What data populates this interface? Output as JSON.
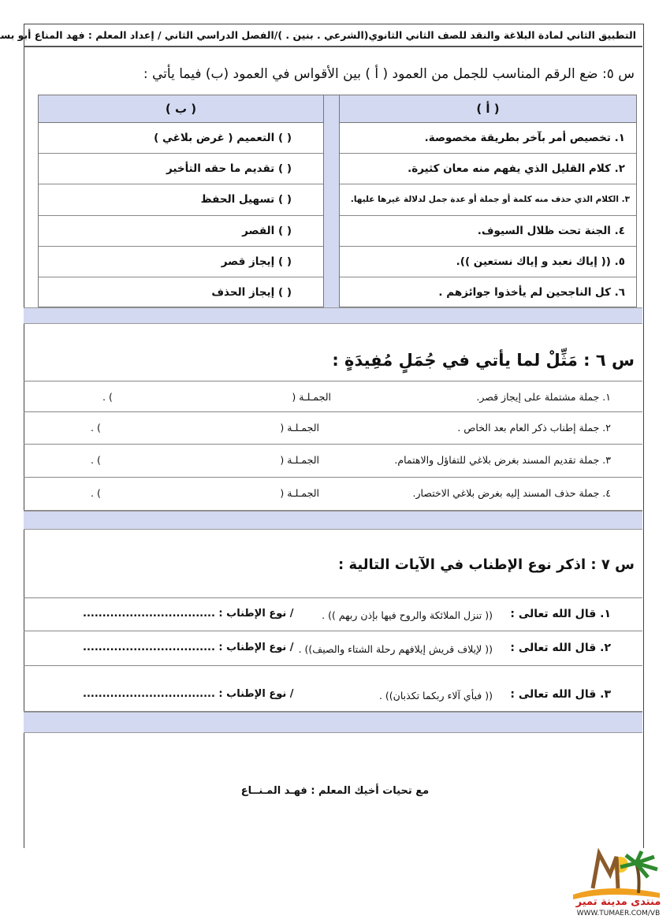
{
  "header": {
    "title": "التطبيق الثاني لمادة البلاغة والنقد للصف الثاني الثانوي(الشرعي . بنين . )/الفصل الدراسي الثاني / إعداد المعلم : فهد المناع أبو بسام ,"
  },
  "q5": {
    "title": "س ٥: ضع الرقم المناسب للجمل من العمود ( أ ) بين الأقواس في العمود (ب) فيما يأتي :",
    "col_a_header": "( أ )",
    "col_b_header": "( ب )",
    "col_a": [
      "١. تخصيص أمر بآخر بطريقة مخصوصة.",
      "٢. كلام القليل الذي يفهم منه معان كثيرة.",
      "٣. الكلام الذي حذف منه كلمة أو جملة أو عدة جمل لدلالة غيرها عليها.",
      "٤. الجنة تحت ظلال السيوف.",
      "٥. (( إياك نعبد و إياك نستعين )).",
      "٦. كل الناجحين لم يأخذوا جوائزهم ."
    ],
    "col_b": [
      "( ) التعميم ( غرض بلاغي )",
      "( ) تقديم ما حقه التأخير",
      "( ) تسهيل الحفظ",
      "( ) القصر",
      "( ) إيجاز قصر",
      "( ) إيجاز الحذف"
    ]
  },
  "q6": {
    "title": "س ٦ : مَثِّلْ لما يأتي في جُمَلٍ مُفِيدَةٍ :",
    "sentence_label": "الجمـلـة (",
    "close": ") .",
    "items": [
      "١. جملة مشتملة على إيجاز قصر.",
      "٢. جملة إطناب ذكر العام بعد الخاص .",
      "٣. جملة تقديم المسند بغرض بلاغي للتفاؤل والاهتمام.",
      "٤. جملة حذف المسند إليه بغرض بلاغي الاختصار."
    ]
  },
  "q7": {
    "title": "س ٧ : اذكر نوع الإطناب في الآيات التالية :",
    "type_label": "/ نوع الإطناب : ..................................",
    "items": [
      {
        "prefix": "١. قال الله تعالى :",
        "verse": "(( تنزل الملائكة والروح فيها بإذن ربهم )) ."
      },
      {
        "prefix": "٢. قال الله تعالى :",
        "verse": "(( لإيلاف قريش إيلافهم رحلة الشتاء والصيف)) ."
      },
      {
        "prefix": "٣. قال الله تعالى :",
        "verse": "(( فبأي آلاء ربكما تكذبان)) ."
      }
    ]
  },
  "footer": {
    "text": "مع تحيات أخيك المعلم : فهـد المـنــاع"
  },
  "logo": {
    "text_ar": "منتدى مدينة تمير",
    "text_en": "WWW.TUMAER.COM/VB"
  }
}
